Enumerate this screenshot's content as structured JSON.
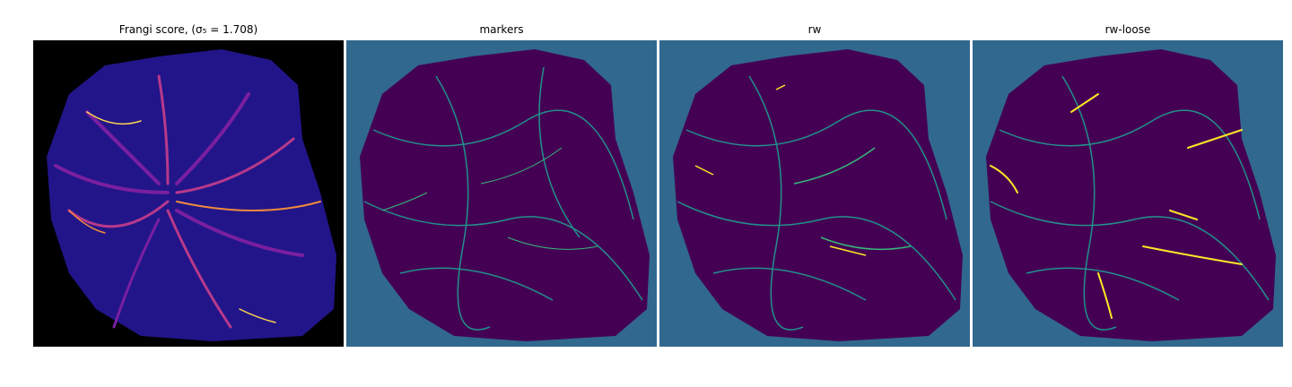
{
  "figure": {
    "panels": [
      {
        "title": "Frangi score, (σ₅ = 1.708)",
        "background": "#000000",
        "tissue": "#22158a",
        "vessel_colors": [
          "#7a1fa0",
          "#b8398a",
          "#f08a3c",
          "#fbd24e"
        ]
      },
      {
        "title": "markers",
        "background": "#31688e",
        "tissue": "#440154",
        "vessel_colors": [
          "#35b779",
          "#21918c"
        ]
      },
      {
        "title": "rw",
        "background": "#31688e",
        "tissue": "#440154",
        "vessel_colors": [
          "#21918c",
          "#35b779",
          "#fde725"
        ]
      },
      {
        "title": "rw-loose",
        "background": "#31688e",
        "tissue": "#440154",
        "vessel_colors": [
          "#21918c",
          "#35b779",
          "#fde725"
        ]
      }
    ]
  }
}
